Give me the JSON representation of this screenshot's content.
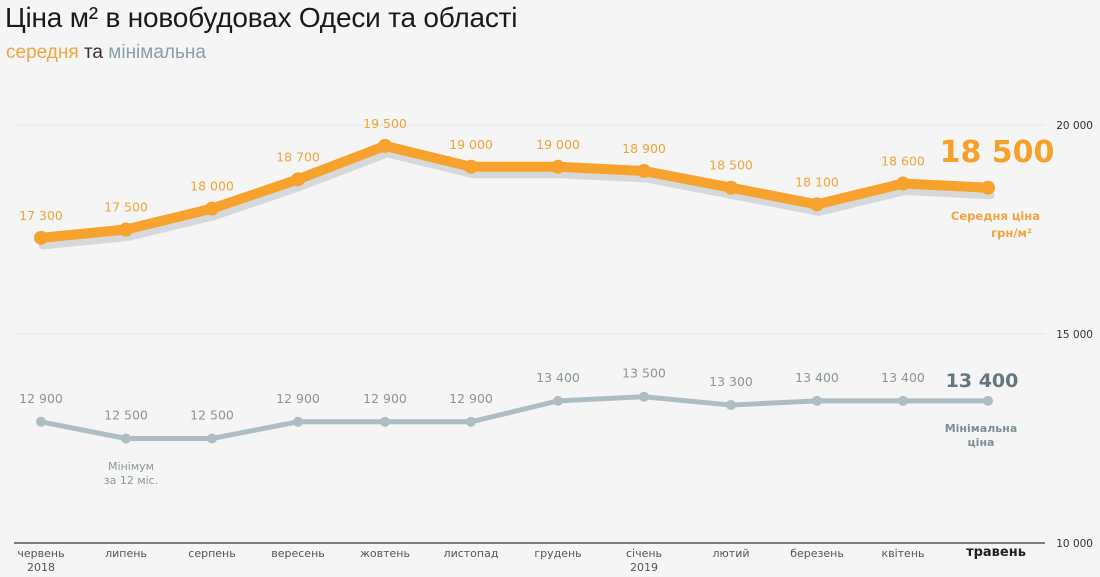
{
  "header": {
    "title": "Ціна м² в новобудовах Одеси та області",
    "subtitle_avg": "середня",
    "subtitle_and": "та",
    "subtitle_min": "мінімальна"
  },
  "colors": {
    "average": "#f7a22c",
    "average_shadow": "#d5d9dc",
    "minimum": "#aebdc3",
    "axis": "#333333",
    "grid": "#e6e6e6",
    "background": "#f5f5f5"
  },
  "annotations": {
    "avg_current_value": "18 500",
    "avg_caption_line1": "Середня ціна",
    "avg_caption_line2": "грн/м²",
    "min_current_value": "13 400",
    "min_caption_line1": "Мінімальна",
    "min_caption_line2": "ціна",
    "min_note_line1": "Мінімум",
    "min_note_line2": "за 12 міс."
  },
  "chart_data": {
    "type": "line",
    "title": "Ціна м² в новобудовах Одеси та області",
    "subtitle": "середня та мінімальна",
    "xlabel": "",
    "ylabel": "грн/м²",
    "ylim": [
      10000,
      20000
    ],
    "yticks": [
      10000,
      15000,
      20000
    ],
    "ytick_labels": [
      "10 000",
      "15 000",
      "20 000"
    ],
    "grid": true,
    "legend_position": "right (inline labels)",
    "categories": [
      "червень",
      "липень",
      "серпень",
      "вересень",
      "жовтень",
      "листопад",
      "грудень",
      "січень",
      "лютий",
      "березень",
      "квітень",
      "травень"
    ],
    "category_sublabels": [
      "2018",
      "",
      "",
      "",
      "",
      "",
      "",
      "2019",
      "",
      "",
      "",
      ""
    ],
    "highlight_category": "травень",
    "series": [
      {
        "name": "Середня ціна",
        "values": [
          17300,
          17500,
          18000,
          18700,
          19500,
          19000,
          19000,
          18900,
          18500,
          18100,
          18600,
          18500
        ],
        "labels": [
          "17 300",
          "17 500",
          "18 000",
          "18 700",
          "19 500",
          "19 000",
          "19 000",
          "18 900",
          "18 500",
          "18 100",
          "18 600",
          "18 500"
        ]
      },
      {
        "name": "Мінімальна ціна",
        "values": [
          12900,
          12500,
          12500,
          12900,
          12900,
          12900,
          13400,
          13500,
          13300,
          13400,
          13400,
          13400
        ],
        "labels": [
          "12 900",
          "12 500",
          "12 500",
          "12 900",
          "12 900",
          "12 900",
          "13 400",
          "13 500",
          "13 300",
          "13 400",
          "13 400",
          "13 400"
        ]
      }
    ]
  }
}
